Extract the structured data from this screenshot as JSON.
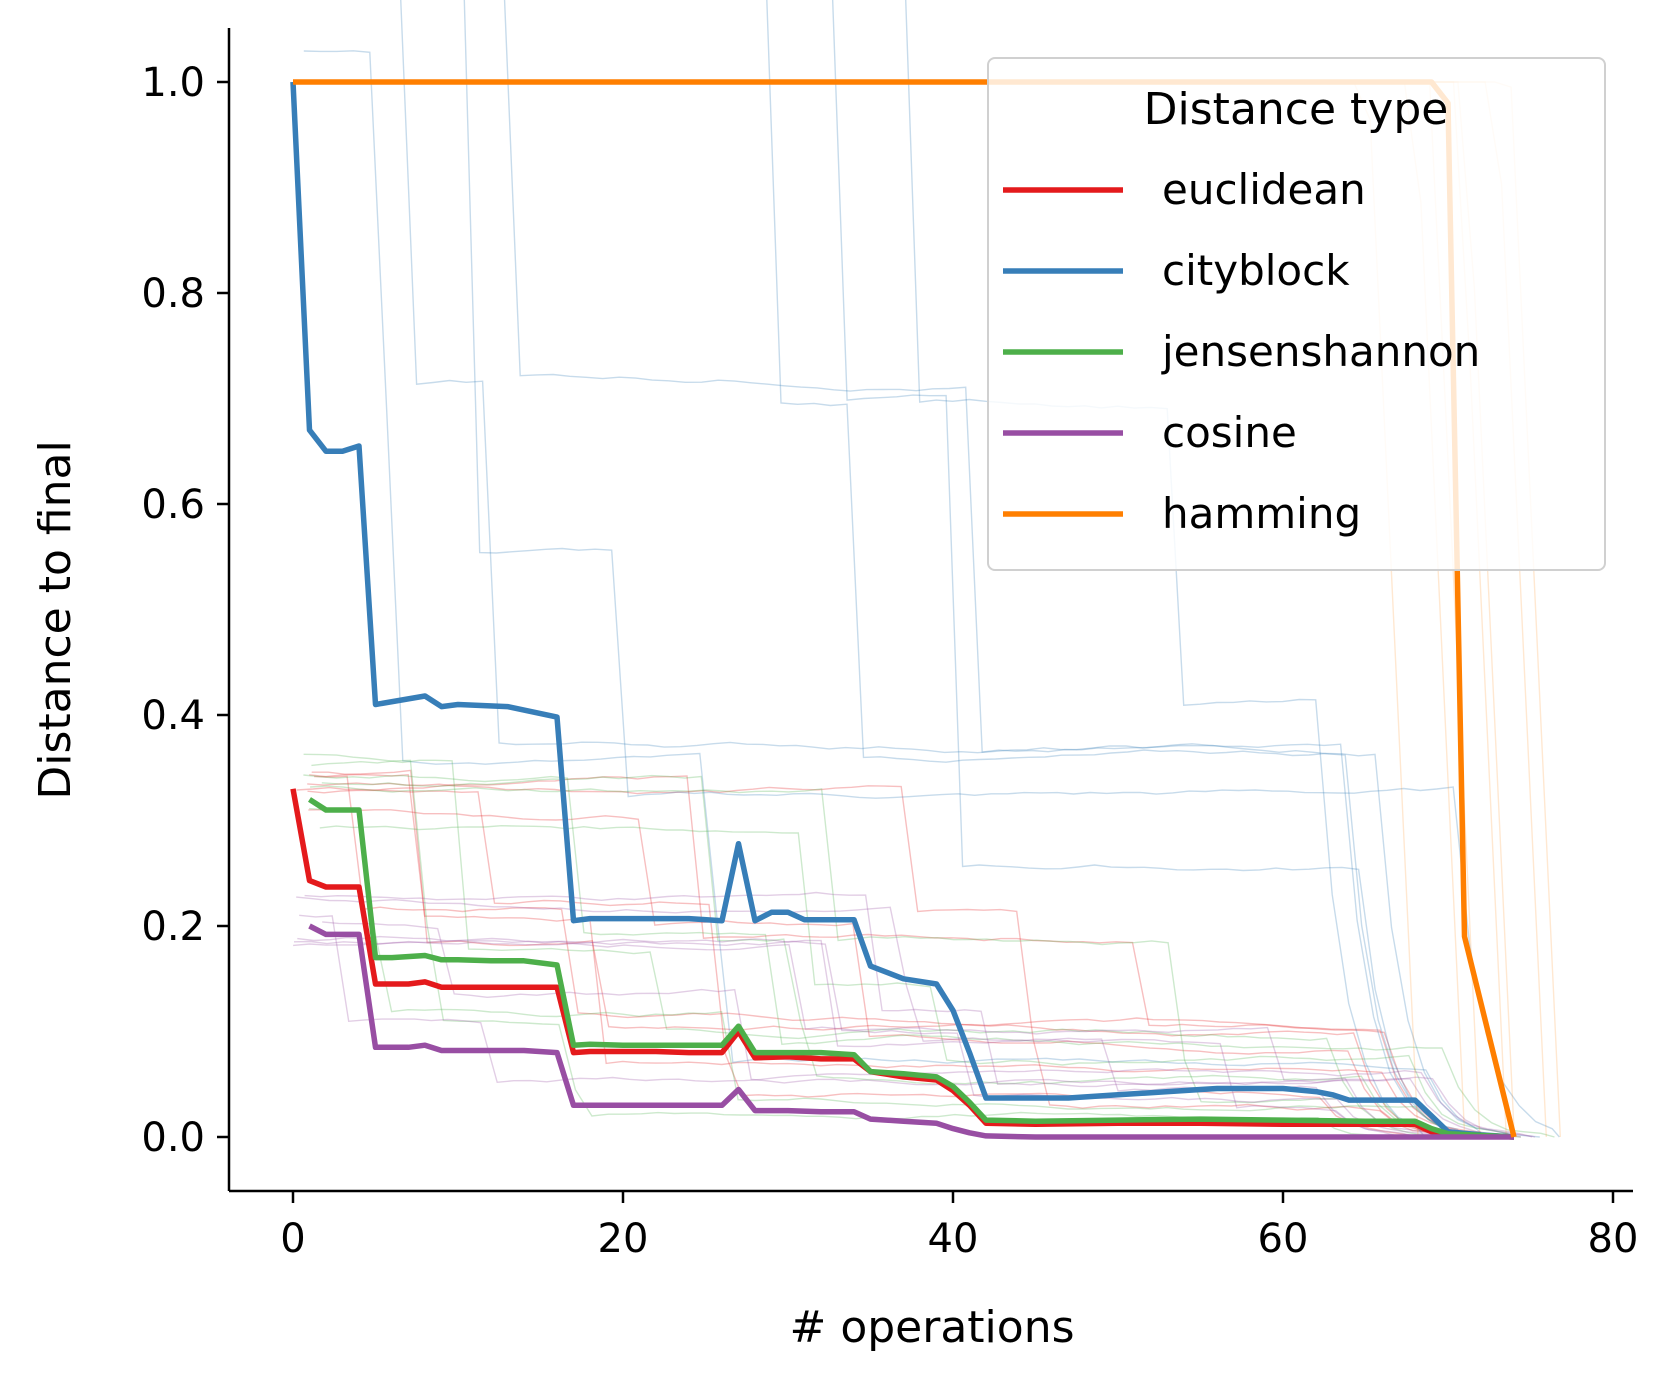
{
  "chart_data": {
    "type": "line",
    "xlabel": "# operations",
    "ylabel": "Distance to final",
    "xlim": [
      -4,
      81
    ],
    "ylim": [
      -0.05,
      1.05
    ],
    "xticks": [
      0,
      20,
      40,
      60,
      80
    ],
    "yticks": [
      0.0,
      0.2,
      0.4,
      0.6,
      0.8,
      1.0
    ],
    "xtick_labels": [
      "0",
      "20",
      "40",
      "60",
      "80"
    ],
    "ytick_labels": [
      "0.0",
      "0.2",
      "0.4",
      "0.6",
      "0.8",
      "1.0"
    ],
    "grid": false,
    "legend": {
      "title": "Distance type",
      "placement": "top-right"
    },
    "series": [
      {
        "name": "euclidean",
        "color": "#e41a1c",
        "x": [
          0,
          1,
          2,
          3,
          4,
          5,
          6,
          7,
          8,
          9,
          10,
          12,
          14,
          16,
          17,
          18,
          20,
          22,
          24,
          26,
          27,
          28,
          30,
          32,
          34,
          35,
          37,
          39,
          40,
          41,
          42,
          45,
          50,
          55,
          60,
          65,
          68,
          69,
          70,
          74
        ],
        "y": [
          0.33,
          0.243,
          0.237,
          0.237,
          0.237,
          0.145,
          0.145,
          0.145,
          0.147,
          0.142,
          0.142,
          0.142,
          0.142,
          0.142,
          0.08,
          0.081,
          0.081,
          0.081,
          0.08,
          0.08,
          0.1,
          0.075,
          0.076,
          0.074,
          0.074,
          0.062,
          0.057,
          0.054,
          0.044,
          0.03,
          0.013,
          0.012,
          0.013,
          0.013,
          0.012,
          0.012,
          0.012,
          0.005,
          0.003,
          0.0
        ]
      },
      {
        "name": "cityblock",
        "color": "#377eb8",
        "x": [
          0,
          1,
          2,
          3,
          4,
          5,
          8,
          9,
          10,
          13,
          16,
          17,
          18,
          20,
          24,
          26,
          27,
          28,
          29,
          30,
          31,
          33,
          34,
          35,
          37,
          39,
          40,
          41,
          42,
          45,
          47,
          50,
          55,
          56,
          60,
          62,
          63,
          64,
          66,
          68,
          69,
          70,
          72,
          74
        ],
        "y": [
          1.0,
          0.67,
          0.65,
          0.65,
          0.655,
          0.41,
          0.418,
          0.408,
          0.41,
          0.408,
          0.398,
          0.205,
          0.207,
          0.207,
          0.207,
          0.205,
          0.278,
          0.205,
          0.213,
          0.213,
          0.206,
          0.206,
          0.206,
          0.162,
          0.15,
          0.145,
          0.12,
          0.08,
          0.037,
          0.037,
          0.037,
          0.04,
          0.045,
          0.046,
          0.046,
          0.043,
          0.04,
          0.035,
          0.035,
          0.035,
          0.02,
          0.005,
          0.002,
          0.0
        ]
      },
      {
        "name": "jensenshannon",
        "color": "#4daf4a",
        "x": [
          1,
          2,
          3,
          4,
          5,
          6,
          8,
          9,
          10,
          12,
          14,
          16,
          17,
          18,
          20,
          24,
          26,
          27,
          28,
          30,
          32,
          34,
          35,
          37,
          39,
          40,
          41,
          42,
          45,
          50,
          55,
          60,
          65,
          68,
          69,
          70,
          74
        ],
        "y": [
          0.32,
          0.31,
          0.31,
          0.31,
          0.17,
          0.17,
          0.172,
          0.168,
          0.168,
          0.167,
          0.167,
          0.163,
          0.087,
          0.088,
          0.087,
          0.087,
          0.087,
          0.105,
          0.08,
          0.08,
          0.08,
          0.078,
          0.062,
          0.06,
          0.057,
          0.048,
          0.033,
          0.016,
          0.015,
          0.016,
          0.017,
          0.016,
          0.015,
          0.015,
          0.008,
          0.003,
          0.0
        ]
      },
      {
        "name": "cosine",
        "color": "#984ea3",
        "x": [
          1,
          2,
          3,
          4,
          5,
          6,
          7,
          8,
          9,
          10,
          12,
          14,
          16,
          17,
          18,
          20,
          24,
          26,
          27,
          28,
          30,
          32,
          34,
          35,
          37,
          39,
          40,
          41,
          42,
          45,
          50,
          60,
          70,
          74
        ],
        "y": [
          0.2,
          0.192,
          0.192,
          0.192,
          0.085,
          0.085,
          0.085,
          0.087,
          0.082,
          0.082,
          0.082,
          0.082,
          0.08,
          0.03,
          0.03,
          0.03,
          0.03,
          0.03,
          0.045,
          0.025,
          0.025,
          0.024,
          0.024,
          0.017,
          0.015,
          0.013,
          0.008,
          0.004,
          0.001,
          0.0,
          0.0,
          0.0,
          0.0,
          0.0
        ]
      },
      {
        "name": "hamming",
        "color": "#ff7f00",
        "x": [
          0,
          10,
          20,
          30,
          40,
          50,
          60,
          69,
          70,
          71,
          74
        ],
        "y": [
          1.0,
          1.0,
          1.0,
          1.0,
          1.0,
          1.0,
          1.0,
          1.0,
          0.98,
          0.19,
          0.0
        ]
      }
    ]
  }
}
